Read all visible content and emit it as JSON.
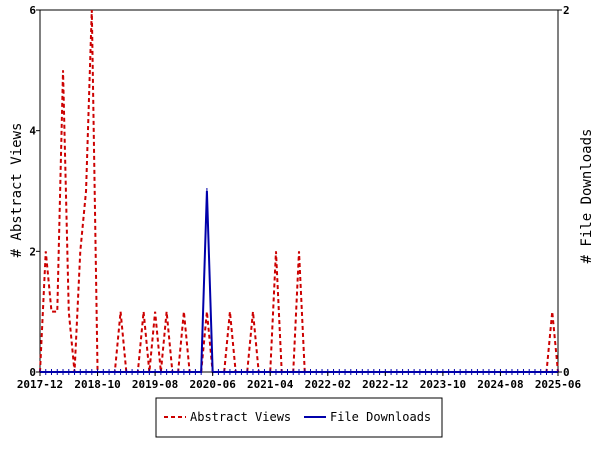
{
  "chart_data": {
    "type": "line",
    "x": [
      "2017-12",
      "2018-01",
      "2018-02",
      "2018-03",
      "2018-04",
      "2018-05",
      "2018-06",
      "2018-07",
      "2018-08",
      "2018-09",
      "2018-10",
      "2018-11",
      "2018-12",
      "2019-01",
      "2019-02",
      "2019-03",
      "2019-04",
      "2019-05",
      "2019-06",
      "2019-07",
      "2019-08",
      "2019-09",
      "2019-10",
      "2019-11",
      "2019-12",
      "2020-01",
      "2020-02",
      "2020-03",
      "2020-04",
      "2020-05",
      "2020-06",
      "2020-07",
      "2020-08",
      "2020-09",
      "2020-10",
      "2020-11",
      "2020-12",
      "2021-01",
      "2021-02",
      "2021-03",
      "2021-04",
      "2021-05",
      "2021-06",
      "2021-07",
      "2021-08",
      "2021-09",
      "2021-10",
      "2021-11",
      "2021-12",
      "2022-01",
      "2022-02",
      "2022-03",
      "2022-04",
      "2022-05",
      "2022-06",
      "2022-07",
      "2022-08",
      "2022-09",
      "2022-10",
      "2022-11",
      "2022-12",
      "2023-01",
      "2023-02",
      "2023-03",
      "2023-04",
      "2023-05",
      "2023-06",
      "2023-07",
      "2023-08",
      "2023-09",
      "2023-10",
      "2023-11",
      "2023-12",
      "2024-01",
      "2024-02",
      "2024-03",
      "2024-04",
      "2024-05",
      "2024-06",
      "2024-07",
      "2024-08",
      "2024-09",
      "2024-10",
      "2024-11",
      "2024-12",
      "2025-01",
      "2025-02",
      "2025-03",
      "2025-04",
      "2025-05",
      "2025-06"
    ],
    "series": [
      {
        "name": "Abstract Views",
        "axis": "left",
        "color": "#cc0000",
        "style": "dashed",
        "values": [
          0,
          2,
          1,
          1,
          5,
          1,
          0,
          2,
          3,
          6,
          0,
          0,
          0,
          0,
          1,
          0,
          0,
          0,
          1,
          0,
          1,
          0,
          1,
          0,
          0,
          1,
          0,
          0,
          0,
          1,
          0,
          0,
          0,
          1,
          0,
          0,
          0,
          1,
          0,
          0,
          0,
          2,
          0,
          0,
          0,
          2,
          0,
          0,
          0,
          0,
          0,
          0,
          0,
          0,
          0,
          0,
          0,
          0,
          0,
          0,
          0,
          0,
          0,
          0,
          0,
          0,
          0,
          0,
          0,
          0,
          0,
          0,
          0,
          0,
          0,
          0,
          0,
          0,
          0,
          0,
          0,
          0,
          0,
          0,
          0,
          0,
          0,
          0,
          0,
          1,
          0
        ]
      },
      {
        "name": "File Downloads",
        "axis": "right",
        "color": "#0000aa",
        "style": "solid",
        "values": [
          0,
          0,
          0,
          0,
          0,
          0,
          0,
          0,
          0,
          0,
          0,
          0,
          0,
          0,
          0,
          0,
          0,
          0,
          0,
          0,
          0,
          0,
          0,
          0,
          0,
          0,
          0,
          0,
          0,
          1,
          0,
          0,
          0,
          0,
          0,
          0,
          0,
          0,
          0,
          0,
          0,
          0,
          0,
          0,
          0,
          0,
          0,
          0,
          0,
          0,
          0,
          0,
          0,
          0,
          0,
          0,
          0,
          0,
          0,
          0,
          0,
          0,
          0,
          0,
          0,
          0,
          0,
          0,
          0,
          0,
          0,
          0,
          0,
          0,
          0,
          0,
          0,
          0,
          0,
          0,
          0,
          0,
          0,
          0,
          0,
          0,
          0,
          0,
          0,
          0,
          0
        ]
      }
    ],
    "y_left": {
      "label": "# Abstract Views",
      "lim": [
        0,
        6
      ],
      "ticks": [
        "0",
        "2",
        "4",
        "6"
      ]
    },
    "y_right": {
      "label": "# File Downloads",
      "lim": [
        0,
        2
      ],
      "ticks": [
        "0",
        "2"
      ]
    },
    "x_tick_labels": [
      "2017-12",
      "2018-10",
      "2019-08",
      "2020-06",
      "2021-04",
      "2022-02",
      "2022-12",
      "2023-10",
      "2024-08",
      "2025-06"
    ],
    "legend_position": "bottom-center",
    "grid": false
  }
}
